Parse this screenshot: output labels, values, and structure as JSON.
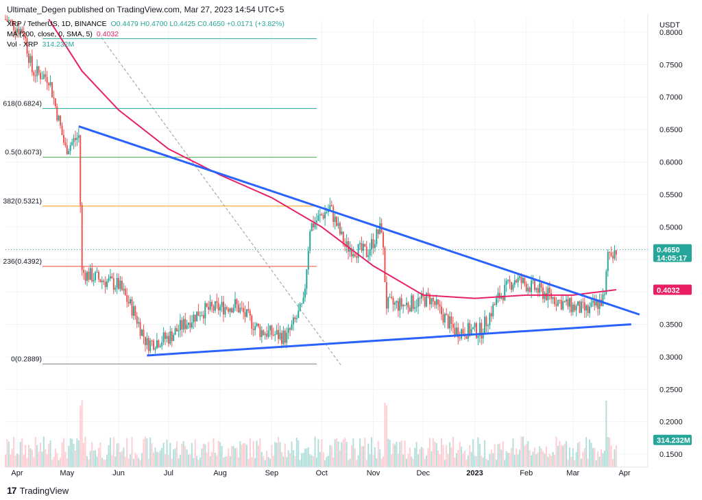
{
  "header": {
    "text": "Ultimate_Degen published on TradingView.com, Mar 27, 2023 14:54 UTC+5"
  },
  "legend": {
    "line1": "XRP / TetherUS, 1D, BINANCE",
    "ohlc": "O0.4479 H0.4700 L0.4425 C0.4650 +0.0171 (+3.82%)",
    "line2": "MA (200, close, 0, SMA, 5)",
    "line2_value": "0.4032",
    "line3": "Vol · XRP",
    "line3_value": "314.232M"
  },
  "axis": {
    "currency": "USDT",
    "price_labels": [
      "0.8000",
      "0.7500",
      "0.7000",
      "0.6500",
      "0.6000",
      "0.5500",
      "0.5000",
      "0.4500",
      "0.4000",
      "0.3500",
      "0.3000",
      "0.2500",
      "0.2000",
      "0.1500"
    ],
    "month_labels": [
      "Apr",
      "May",
      "Jun",
      "Jul",
      "Aug",
      "Sep",
      "Oct",
      "Nov",
      "Dec",
      "2023",
      "Feb",
      "Mar",
      "Apr"
    ]
  },
  "price_tags": {
    "last_price": "0.4650",
    "countdown": "14:05:17",
    "ma_value": "0.4032",
    "volume": "314.232M"
  },
  "fib_labels": [
    "618(0.6824)",
    "0.5(0.6073)",
    "382(0.5321)",
    "236(0.4392)",
    "0(0.2889)"
  ],
  "footer": {
    "brand": "TradingView",
    "logo": "17"
  },
  "colors": {
    "up": "#26a69a",
    "down": "#ef5350",
    "ma": "#e91e63",
    "trend": "#2962ff",
    "vol_up": "#b2dfdb",
    "vol_down": "#ffcdd2"
  },
  "chart_data": {
    "type": "candlestick",
    "symbol": "XRP / TetherUS",
    "interval": "1D",
    "exchange": "BINANCE",
    "ylim": [
      0.13,
      0.82
    ],
    "x_range": [
      "2022-03-25",
      "2023-04-15"
    ],
    "fib_levels": [
      {
        "label": "0.618",
        "value": 0.6824
      },
      {
        "label": "0.5",
        "value": 0.6073
      },
      {
        "label": "0.382",
        "value": 0.5321
      },
      {
        "label": "0.236",
        "value": 0.4392
      },
      {
        "label": "0",
        "value": 0.2889
      },
      {
        "label": "",
        "value": 0.79
      }
    ],
    "trendlines": [
      {
        "from": [
          "2022-05-08",
          0.655
        ],
        "to": [
          "2023-04-10",
          0.365
        ]
      },
      {
        "from": [
          "2022-06-18",
          0.302
        ],
        "to": [
          "2023-04-05",
          0.35
        ]
      }
    ],
    "last_candle": {
      "open": 0.4479,
      "high": 0.47,
      "low": 0.4425,
      "close": 0.465,
      "change": 0.0171,
      "change_pct": 3.82
    },
    "price_path": [
      [
        "2022-03-25",
        0.82
      ],
      [
        "2022-04-05",
        0.8
      ],
      [
        "2022-04-10",
        0.74
      ],
      [
        "2022-04-20",
        0.73
      ],
      [
        "2022-04-30",
        0.62
      ],
      [
        "2022-05-08",
        0.64
      ],
      [
        "2022-05-10",
        0.43
      ],
      [
        "2022-05-20",
        0.42
      ],
      [
        "2022-06-01",
        0.41
      ],
      [
        "2022-06-10",
        0.37
      ],
      [
        "2022-06-18",
        0.32
      ],
      [
        "2022-07-01",
        0.33
      ],
      [
        "2022-07-20",
        0.37
      ],
      [
        "2022-08-10",
        0.38
      ],
      [
        "2022-08-25",
        0.34
      ],
      [
        "2022-09-10",
        0.33
      ],
      [
        "2022-09-20",
        0.38
      ],
      [
        "2022-09-24",
        0.5
      ],
      [
        "2022-10-06",
        0.53
      ],
      [
        "2022-10-15",
        0.47
      ],
      [
        "2022-10-28",
        0.46
      ],
      [
        "2022-11-06",
        0.5
      ],
      [
        "2022-11-09",
        0.38
      ],
      [
        "2022-11-20",
        0.38
      ],
      [
        "2022-12-05",
        0.39
      ],
      [
        "2022-12-20",
        0.34
      ],
      [
        "2023-01-05",
        0.34
      ],
      [
        "2023-01-15",
        0.39
      ],
      [
        "2023-01-25",
        0.42
      ],
      [
        "2023-02-10",
        0.4
      ],
      [
        "2023-02-25",
        0.38
      ],
      [
        "2023-03-10",
        0.37
      ],
      [
        "2023-03-20",
        0.39
      ],
      [
        "2023-03-22",
        0.46
      ],
      [
        "2023-03-27",
        0.465
      ]
    ],
    "ma_path": [
      [
        "2022-04-20",
        0.82
      ],
      [
        "2022-05-10",
        0.74
      ],
      [
        "2022-06-01",
        0.68
      ],
      [
        "2022-07-01",
        0.62
      ],
      [
        "2022-08-01",
        0.58
      ],
      [
        "2022-09-01",
        0.545
      ],
      [
        "2022-10-01",
        0.5
      ],
      [
        "2022-11-01",
        0.44
      ],
      [
        "2022-12-01",
        0.395
      ],
      [
        "2023-01-01",
        0.39
      ],
      [
        "2023-02-01",
        0.395
      ],
      [
        "2023-03-01",
        0.395
      ],
      [
        "2023-03-27",
        0.4032
      ]
    ]
  }
}
